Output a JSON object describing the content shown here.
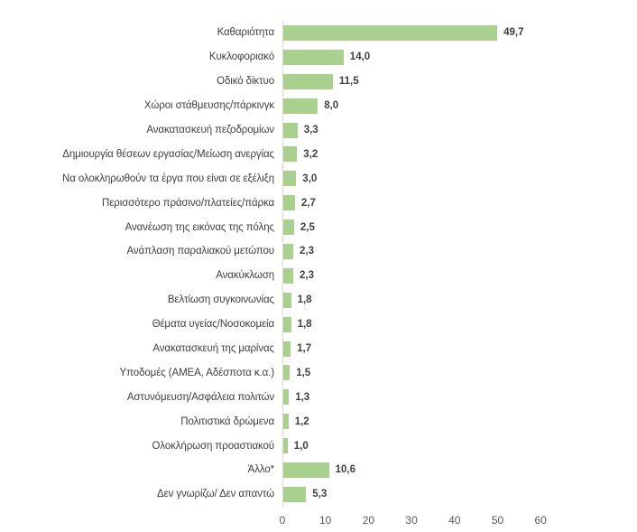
{
  "chart_data": {
    "type": "bar",
    "orientation": "horizontal",
    "title": "",
    "xlabel": "",
    "ylabel": "",
    "xlim": [
      0,
      60
    ],
    "grid": false,
    "legend": false,
    "bar_color": "#A9D18E",
    "axis_line_color": "#d9d9d9",
    "label_color": "#3f3f3f",
    "value_label_color": "#404040",
    "tick_label_color": "#595959",
    "decimal_separator": ",",
    "categories": [
      "Καθαριότητα",
      "Κυκλοφοριακό",
      "Οδικό δίκτυο",
      "Χώροι στάθμευσης/πάρκινγκ",
      "Ανακατασκευή πεζοδρομίων",
      "Δημιουργία θέσεων εργασίας/Μείωση ανεργίας",
      "Να ολοκληρωθούν τα έργα που είναι σε εξέλιξη",
      "Περισσότερο πράσινο/πλατείες/πάρκα",
      "Ανανέωση της εικόνας της  πόλης",
      "Ανάπλαση παραλιακού μετώπου",
      "Ανακύκλωση",
      "Βελτίωση συγκοινωνίας",
      "Θέματα υγείας/Νοσοκομεία",
      "Ανακατασκευή της μαρίνας",
      "Υποδομές (ΑΜΕΑ, Αδέσποτα κ.α.)",
      "Αστυνόμευση/Ασφάλεια πολιτών",
      "Πολιτιστικά δρώμενα",
      "Ολοκλήρωση προαστιακού",
      "Άλλο*",
      "Δεν γνωρίζω/ Δεν απαντώ"
    ],
    "values": [
      49.7,
      14.0,
      11.5,
      8.0,
      3.3,
      3.2,
      3.0,
      2.7,
      2.5,
      2.3,
      2.3,
      1.8,
      1.8,
      1.7,
      1.5,
      1.3,
      1.2,
      1.0,
      10.6,
      5.3
    ],
    "display_values": [
      "49,7",
      "14,0",
      "11,5",
      "8,0",
      "3,3",
      "3,2",
      "3,0",
      "2,7",
      "2,5",
      "2,3",
      "2,3",
      "1,8",
      "1,8",
      "1,7",
      "1,5",
      "1,3",
      "1,2",
      "1,0",
      "10,6",
      "5,3"
    ],
    "x_ticks": [
      "0",
      "10",
      "20",
      "30",
      "40",
      "50",
      "60"
    ]
  }
}
